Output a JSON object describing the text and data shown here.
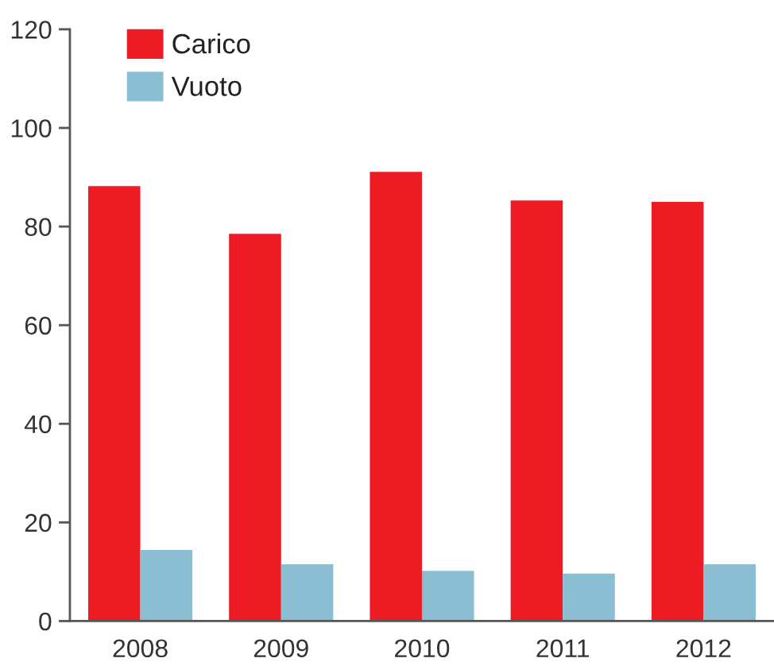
{
  "chart_data": {
    "type": "bar",
    "categories": [
      "2008",
      "2009",
      "2010",
      "2011",
      "2012"
    ],
    "series": [
      {
        "name": "Carico",
        "color": "#ed1c24",
        "values": [
          88.2,
          78.5,
          91.1,
          85.3,
          85.0
        ]
      },
      {
        "name": "Vuoto",
        "color": "#8bbdd3",
        "values": [
          14.4,
          11.5,
          10.2,
          9.6,
          11.5
        ]
      }
    ],
    "ylim": [
      0,
      120
    ],
    "yticks": [
      0,
      20,
      40,
      60,
      80,
      100,
      120
    ],
    "legend": "top left"
  }
}
